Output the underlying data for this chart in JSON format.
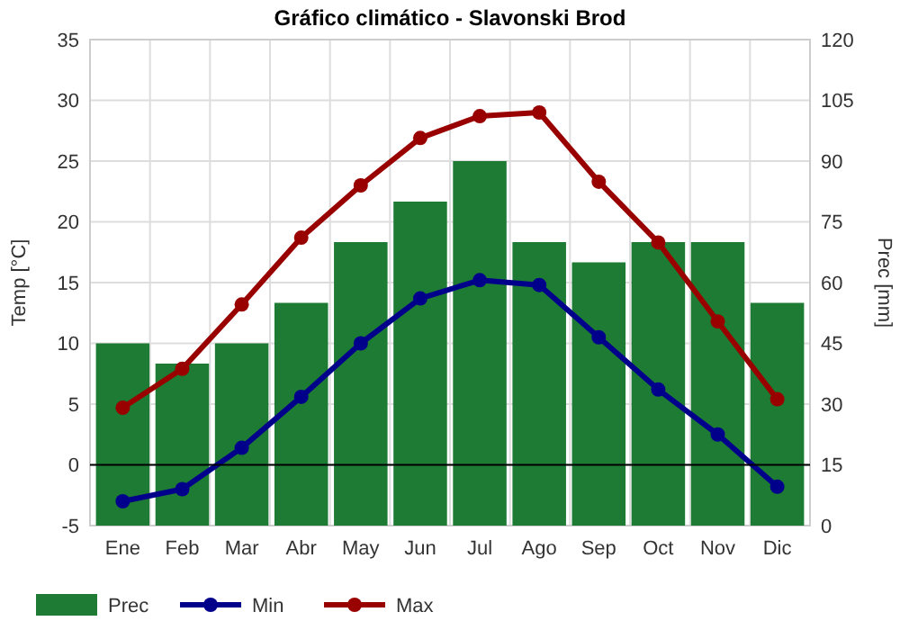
{
  "chart_data": {
    "type": "line",
    "title": "Gráfico climático - Slavonski Brod",
    "ylabel": "Temp [°C]",
    "y2label": "Prec [mm]",
    "categories": [
      "Ene",
      "Feb",
      "Mar",
      "Abr",
      "May",
      "Jun",
      "Jul",
      "Ago",
      "Sep",
      "Oct",
      "Nov",
      "Dic"
    ],
    "series": [
      {
        "name": "Prec",
        "type": "bar",
        "axis": "y2",
        "color": "#1e7b34",
        "values": [
          45,
          40,
          45,
          55,
          70,
          80,
          90,
          70,
          65,
          70,
          70,
          55
        ]
      },
      {
        "name": "Min",
        "color": "#00008b",
        "values": [
          -3,
          -2,
          1.4,
          5.6,
          10,
          13.7,
          15.2,
          14.8,
          10.5,
          6.2,
          2.5,
          -1.8
        ]
      },
      {
        "name": "Max",
        "color": "#990000",
        "values": [
          4.7,
          7.9,
          13.2,
          18.7,
          23,
          26.9,
          28.7,
          29,
          23.3,
          18.3,
          11.8,
          5.4
        ]
      }
    ],
    "ylim": [
      -5,
      35
    ],
    "yticks": [
      -5,
      0,
      5,
      10,
      15,
      20,
      25,
      30,
      35
    ],
    "y2lim": [
      0,
      120
    ],
    "y2ticks": [
      0,
      15,
      30,
      45,
      60,
      75,
      90,
      105,
      120
    ],
    "ref_lines": [
      {
        "axis": "y",
        "value": 0,
        "color": "#000000"
      }
    ],
    "grid": true,
    "legend": "bottom",
    "marker": "circle",
    "line_style": "solid"
  }
}
